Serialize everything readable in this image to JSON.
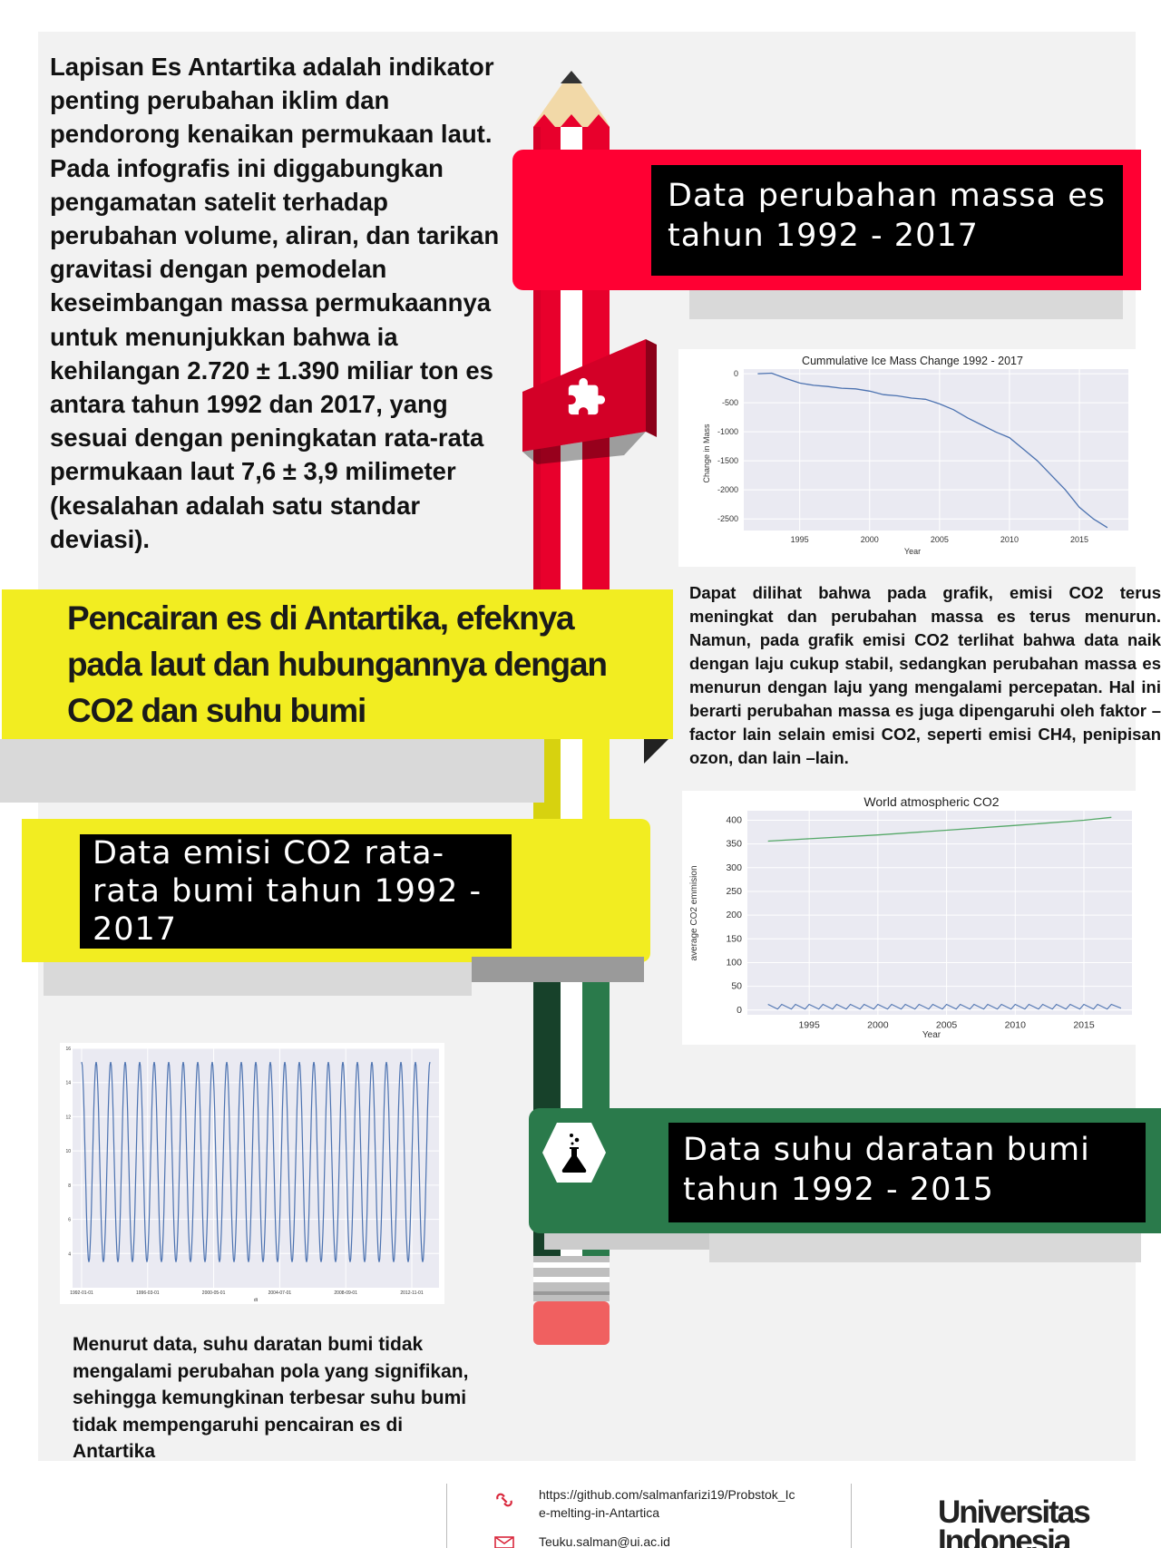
{
  "intro": {
    "text": "Lapisan Es Antartika adalah indikator penting perubahan iklim dan pendorong kenaikan permukaan laut. Pada infografis ini diggabungkan pengamatan satelit terhadap perubahan volume, aliran, dan tarikan gravitasi dengan pemodelan keseimbangan massa permukaannya untuk menunjukkan bahwa ia kehilangan 2.720 ± 1.390 miliar ton es antara tahun 1992 dan 2017, yang sesuai dengan peningkatan rata-rata permukaan laut 7,6 ± 3,9 milimeter (kesalahan adalah satu standar deviasi)."
  },
  "main_title": "Pencairan es di Antartika, efeknya pada laut dan hubungannya dengan CO2 dan suhu bumi",
  "sections": {
    "ice": {
      "title": "Data perubahan massa es tahun 1992 - 2017"
    },
    "co2": {
      "title": "Data emisi CO2 rata-rata bumi tahun 1992 - 2017"
    },
    "temp": {
      "title": "Data suhu daratan bumi tahun 1992 - 2015"
    }
  },
  "notes": {
    "ice_co2": "Dapat dilihat bahwa pada grafik, emisi CO2 terus meningkat dan perubahan massa es terus menurun. Namun, pada grafik emisi CO2 terlihat bahwa data naik dengan laju cukup stabil, sedangkan perubahan massa es menurun dengan laju yang mengalami percepatan. Hal ini berarti perubahan massa es juga dipengaruhi oleh faktor – factor lain selain emisi CO2, seperti emisi CH4, penipisan ozon, dan lain –lain.",
    "temp": "Menurut data, suhu daratan bumi tidak mengalami perubahan pola yang signifikan, sehingga kemungkinan terbesar suhu bumi tidak mempengaruhi pencairan es di Antartika"
  },
  "footer": {
    "link": "https://github.com/salmanfarizi19/Probstok_Ice-melting-in-Antartica",
    "link_line1": "https://github.com/salmanfarizi19/Probstok_Ic",
    "link_line2": "e-melting-in-Antartica",
    "email": "Teuku.salman@ui.ac.id",
    "logo_line1": "Universitas",
    "logo_line2": "Indonesia",
    "link_icon": "link-icon",
    "email_icon": "envelope-icon"
  },
  "icons": {
    "puzzle": "puzzle-icon",
    "flask": "flask-icon",
    "pencil": "pencil-illustration"
  },
  "colors": {
    "red": "#ff0033",
    "yellow": "#f2ed21",
    "green": "#2a7a4b",
    "chart_line": "#4c72b0",
    "co2_line": "#55a868",
    "chart_bg": "#eaeaf2"
  },
  "chart_data": [
    {
      "type": "line",
      "title": "Cummulative Ice Mass Change 1992 - 2017",
      "xlabel": "Year",
      "ylabel": "Change in Mass",
      "xlim": [
        1991,
        2018.5
      ],
      "ylim": [
        -2700,
        80
      ],
      "xticks": [
        1995,
        2000,
        2005,
        2010,
        2015
      ],
      "yticks": [
        0,
        -500,
        -1000,
        -1500,
        -2000,
        -2500
      ],
      "grid": true,
      "x": [
        1992,
        1993,
        1994,
        1995,
        1996,
        1997,
        1998,
        1999,
        2000,
        2001,
        2002,
        2003,
        2004,
        2005,
        2006,
        2007,
        2008,
        2009,
        2010,
        2011,
        2012,
        2013,
        2014,
        2015,
        2016,
        2017
      ],
      "values": [
        0,
        10,
        -80,
        -160,
        -200,
        -220,
        -250,
        -260,
        -300,
        -360,
        -380,
        -420,
        -440,
        -520,
        -620,
        -760,
        -880,
        -1000,
        -1100,
        -1300,
        -1500,
        -1750,
        -2000,
        -2300,
        -2500,
        -2650
      ]
    },
    {
      "type": "line",
      "title": "World atmospheric CO2",
      "xlabel": "Year",
      "ylabel": "average CO2 emmision",
      "xlim": [
        1990.5,
        2018.5
      ],
      "ylim": [
        -10,
        420
      ],
      "xticks": [
        1995,
        2000,
        2005,
        2010,
        2015
      ],
      "yticks": [
        0,
        50,
        100,
        150,
        200,
        250,
        300,
        350,
        400
      ],
      "grid": true,
      "x": [
        1992,
        1995,
        2000,
        2005,
        2010,
        2015,
        2017
      ],
      "series": [
        {
          "name": "",
          "values": [
            356,
            361,
            369,
            379,
            389,
            400,
            406
          ]
        },
        {
          "name": "",
          "values": [
            12,
            12,
            12,
            12,
            12,
            12,
            12
          ],
          "note_periodic": "sawtooth 0–12 yearly"
        }
      ]
    },
    {
      "type": "line",
      "title": "",
      "xlabel": "dt",
      "ylabel": "",
      "ylim": [
        2,
        16
      ],
      "yticks": [
        4,
        6,
        8,
        10,
        12,
        14,
        16
      ],
      "xticklabels": [
        "1992-01-01",
        "1996-03-01",
        "2000-05-01",
        "2004-07-01",
        "2008-09-01",
        "2012-11-01"
      ],
      "grid": true,
      "periods": 24,
      "min_value": 3.5,
      "max_value": 15.2
    }
  ]
}
